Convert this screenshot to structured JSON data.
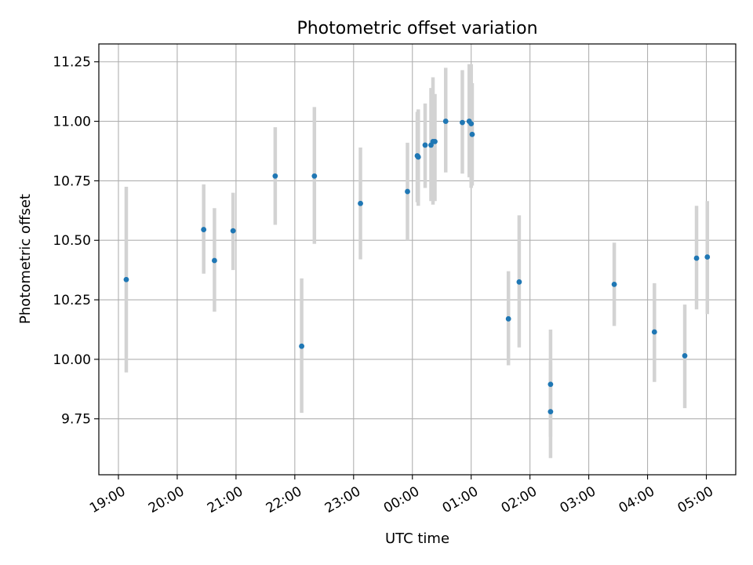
{
  "chart_data": {
    "type": "scatter",
    "title": "Photometric offset variation",
    "xlabel": "UTC time",
    "ylabel": "Photometric offset",
    "x_unit": "UTC datetime",
    "xlim": [
      "2000-01-01T18:40",
      "2000-01-02T05:30"
    ],
    "ylim": [
      9.515,
      11.325
    ],
    "xticks": [
      {
        "label": "19:00",
        "value": "2000-01-01T19:00"
      },
      {
        "label": "20:00",
        "value": "2000-01-01T20:00"
      },
      {
        "label": "21:00",
        "value": "2000-01-01T21:00"
      },
      {
        "label": "22:00",
        "value": "2000-01-01T22:00"
      },
      {
        "label": "23:00",
        "value": "2000-01-01T23:00"
      },
      {
        "label": "00:00",
        "value": "2000-01-02T00:00"
      },
      {
        "label": "01:00",
        "value": "2000-01-02T01:00"
      },
      {
        "label": "02:00",
        "value": "2000-01-02T02:00"
      },
      {
        "label": "03:00",
        "value": "2000-01-02T03:00"
      },
      {
        "label": "04:00",
        "value": "2000-01-02T04:00"
      },
      {
        "label": "05:00",
        "value": "2000-01-02T05:00"
      }
    ],
    "yticks": [
      {
        "label": "9.75",
        "value": 9.75
      },
      {
        "label": "10.00",
        "value": 10.0
      },
      {
        "label": "10.25",
        "value": 10.25
      },
      {
        "label": "10.50",
        "value": 10.5
      },
      {
        "label": "10.75",
        "value": 10.75
      },
      {
        "label": "11.00",
        "value": 11.0
      },
      {
        "label": "11.25",
        "value": 11.25
      }
    ],
    "grid": true,
    "colors": {
      "marker": "#1f77b4",
      "errorbar": "#d3d3d3",
      "grid": "#b0b0b0"
    },
    "points": [
      {
        "x": "2000-01-01T19:08",
        "y": 10.335,
        "ylo": 9.945,
        "yhi": 10.725
      },
      {
        "x": "2000-01-01T20:27",
        "y": 10.545,
        "ylo": 10.36,
        "yhi": 10.735
      },
      {
        "x": "2000-01-01T20:38",
        "y": 10.415,
        "ylo": 10.2,
        "yhi": 10.635
      },
      {
        "x": "2000-01-01T20:57",
        "y": 10.54,
        "ylo": 10.375,
        "yhi": 10.7
      },
      {
        "x": "2000-01-01T21:40",
        "y": 10.77,
        "ylo": 10.565,
        "yhi": 10.975
      },
      {
        "x": "2000-01-01T22:07",
        "y": 10.055,
        "ylo": 9.775,
        "yhi": 10.34
      },
      {
        "x": "2000-01-01T22:20",
        "y": 10.77,
        "ylo": 10.485,
        "yhi": 11.06
      },
      {
        "x": "2000-01-01T23:07",
        "y": 10.655,
        "ylo": 10.42,
        "yhi": 10.89
      },
      {
        "x": "2000-01-01T23:55",
        "y": 10.705,
        "ylo": 10.5,
        "yhi": 10.91
      },
      {
        "x": "2000-01-02T00:05",
        "y": 10.855,
        "ylo": 10.66,
        "yhi": 11.04
      },
      {
        "x": "2000-01-02T00:06",
        "y": 10.85,
        "ylo": 10.645,
        "yhi": 11.05
      },
      {
        "x": "2000-01-02T00:13",
        "y": 10.9,
        "ylo": 10.72,
        "yhi": 11.075
      },
      {
        "x": "2000-01-02T00:19",
        "y": 10.9,
        "ylo": 10.665,
        "yhi": 11.14
      },
      {
        "x": "2000-01-02T00:21",
        "y": 10.915,
        "ylo": 10.65,
        "yhi": 11.185
      },
      {
        "x": "2000-01-02T00:23",
        "y": 10.915,
        "ylo": 10.665,
        "yhi": 11.115
      },
      {
        "x": "2000-01-02T00:34",
        "y": 11.0,
        "ylo": 10.785,
        "yhi": 11.225
      },
      {
        "x": "2000-01-02T00:51",
        "y": 10.995,
        "ylo": 10.78,
        "yhi": 11.215
      },
      {
        "x": "2000-01-02T00:58",
        "y": 11.0,
        "ylo": 10.765,
        "yhi": 11.24
      },
      {
        "x": "2000-01-02T01:00",
        "y": 10.99,
        "ylo": 10.72,
        "yhi": 11.24
      },
      {
        "x": "2000-01-02T01:01",
        "y": 10.945,
        "ylo": 10.73,
        "yhi": 11.16
      },
      {
        "x": "2000-01-02T01:38",
        "y": 10.17,
        "ylo": 9.975,
        "yhi": 10.37
      },
      {
        "x": "2000-01-02T01:49",
        "y": 10.325,
        "ylo": 10.05,
        "yhi": 10.605
      },
      {
        "x": "2000-01-02T02:21",
        "y": 9.895,
        "ylo": 9.675,
        "yhi": 10.125
      },
      {
        "x": "2000-01-02T02:21",
        "y": 9.78,
        "ylo": 9.585,
        "yhi": 9.99
      },
      {
        "x": "2000-01-02T03:26",
        "y": 10.315,
        "ylo": 10.14,
        "yhi": 10.49
      },
      {
        "x": "2000-01-02T04:07",
        "y": 10.115,
        "ylo": 9.905,
        "yhi": 10.32
      },
      {
        "x": "2000-01-02T04:38",
        "y": 10.015,
        "ylo": 9.795,
        "yhi": 10.23
      },
      {
        "x": "2000-01-02T04:50",
        "y": 10.425,
        "ylo": 10.21,
        "yhi": 10.645
      },
      {
        "x": "2000-01-02T05:01",
        "y": 10.43,
        "ylo": 10.19,
        "yhi": 10.665
      }
    ]
  }
}
